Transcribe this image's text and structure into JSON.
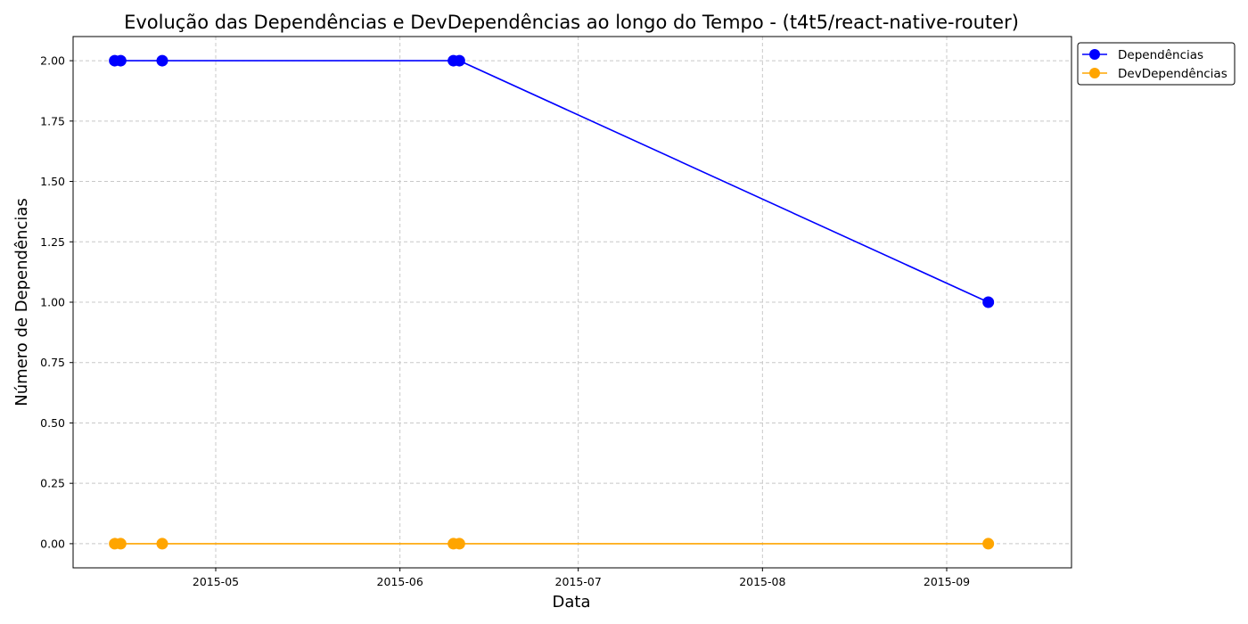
{
  "chart_data": {
    "type": "line",
    "title": "Evolução das Dependências e DevDependências ao longo do Tempo - (t4t5/react-native-router)",
    "xlabel": "Data",
    "ylabel": "Número de Dependências",
    "x_axis_type": "date",
    "xlim": [
      "2015-04-07",
      "2015-09-22"
    ],
    "ylim": [
      -0.1,
      2.1
    ],
    "x_ticks": [
      {
        "date": "2015-05-01",
        "label": "2015-05"
      },
      {
        "date": "2015-06-01",
        "label": "2015-06"
      },
      {
        "date": "2015-07-01",
        "label": "2015-07"
      },
      {
        "date": "2015-08-01",
        "label": "2015-08"
      },
      {
        "date": "2015-09-01",
        "label": "2015-09"
      }
    ],
    "y_ticks": [
      0.0,
      0.25,
      0.5,
      0.75,
      1.0,
      1.25,
      1.5,
      1.75,
      2.0
    ],
    "y_tick_labels": [
      "0.00",
      "0.25",
      "0.50",
      "0.75",
      "1.00",
      "1.25",
      "1.50",
      "1.75",
      "2.00"
    ],
    "grid": true,
    "grid_style": "dashed",
    "legend_position": "outside-top-right",
    "x": [
      "2015-04-14",
      "2015-04-15",
      "2015-04-22",
      "2015-06-10",
      "2015-06-11",
      "2015-09-08"
    ],
    "series": [
      {
        "name": "Dependências",
        "color": "#0000ff",
        "marker": "circle",
        "values": [
          2,
          2,
          2,
          2,
          2,
          1
        ]
      },
      {
        "name": "DevDependências",
        "color": "#ffa500",
        "marker": "circle",
        "values": [
          0,
          0,
          0,
          0,
          0,
          0
        ]
      }
    ]
  }
}
